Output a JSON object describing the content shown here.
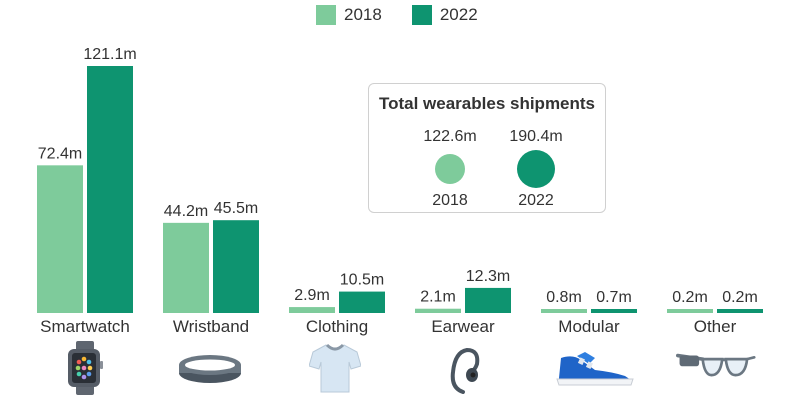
{
  "colors": {
    "c2018": "#7ecb9b",
    "c2022": "#0e9470",
    "text": "#333333"
  },
  "legend": {
    "label_2018": "2018",
    "label_2022": "2022"
  },
  "totals": {
    "title": "Total wearables shipments",
    "items": [
      {
        "year": "2018",
        "value_label": "122.6m",
        "value": 122.6
      },
      {
        "year": "2022",
        "value_label": "190.4m",
        "value": 190.4
      }
    ]
  },
  "icons": [
    "smartwatch-icon",
    "wristband-icon",
    "tshirt-icon",
    "earphone-icon",
    "sneaker-icon",
    "smart-glasses-icon"
  ],
  "chart_data": {
    "type": "bar",
    "title": "",
    "xlabel": "",
    "ylabel": "",
    "ylim": [
      0,
      121.1
    ],
    "categories": [
      "Smartwatch",
      "Wristband",
      "Clothing",
      "Earwear",
      "Modular",
      "Other"
    ],
    "series": [
      {
        "name": "2018",
        "values": [
          72.4,
          44.2,
          2.9,
          2.1,
          0.8,
          0.2
        ],
        "labels": [
          "72.4m",
          "44.2m",
          "2.9m",
          "2.1m",
          "0.8m",
          "0.2m"
        ]
      },
      {
        "name": "2022",
        "values": [
          121.1,
          45.5,
          10.5,
          12.3,
          0.7,
          0.2
        ],
        "labels": [
          "121.1m",
          "45.5m",
          "10.5m",
          "12.3m",
          "0.7m",
          "0.2m"
        ]
      }
    ],
    "legend": "top-center",
    "grid": false
  }
}
